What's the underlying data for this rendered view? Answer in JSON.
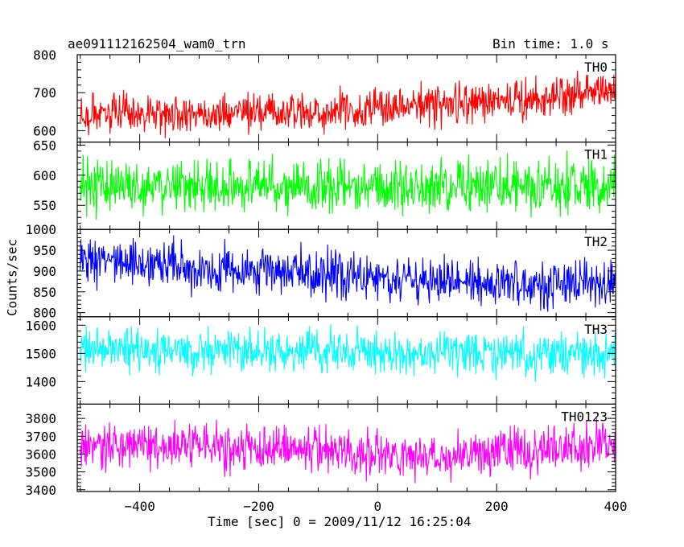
{
  "header": {
    "title": "ae091112162504_wam0_trn",
    "bin_time": "Bin time: 1.0 s"
  },
  "axes": {
    "xlabel": "Time [sec] 0 = 2009/11/12 16:25:04",
    "ylabel": "Counts/sec"
  },
  "chart_data": {
    "type": "line",
    "title": "ae091112162504_wam0_trn",
    "xlabel": "Time [sec] 0 = 2009/11/12 16:25:04",
    "ylabel": "Counts/sec",
    "xlim": [
      -505,
      400
    ],
    "x_ticks": [
      -400,
      -200,
      0,
      200,
      400
    ],
    "x_range_data": [
      -500,
      400
    ],
    "bin_time_s": 1.0,
    "grid": false,
    "panels": [
      {
        "name": "TH0",
        "color": "#ff0000",
        "ylim": [
          570,
          800
        ],
        "yticks": [
          600,
          700,
          800
        ],
        "trend": [
          [
            -500,
            645
          ],
          [
            -300,
            645
          ],
          [
            -100,
            650
          ],
          [
            100,
            668
          ],
          [
            300,
            690
          ],
          [
            400,
            712
          ]
        ],
        "noise_amplitude": 38
      },
      {
        "name": "TH1",
        "color": "#00ff00",
        "ylim": [
          510,
          655
        ],
        "yticks": [
          550,
          600,
          650
        ],
        "trend": [
          [
            -500,
            582
          ],
          [
            400,
            582
          ]
        ],
        "noise_amplitude": 32
      },
      {
        "name": "TH2",
        "color": "#0000ff",
        "ylim": [
          790,
          1000
        ],
        "yticks": [
          800,
          850,
          900,
          950,
          1000
        ],
        "trend": [
          [
            -500,
            925
          ],
          [
            -300,
            905
          ],
          [
            -100,
            893
          ],
          [
            50,
            878
          ],
          [
            200,
            868
          ],
          [
            400,
            870
          ]
        ],
        "noise_amplitude": 40
      },
      {
        "name": "TH3",
        "color": "#00ffff",
        "ylim": [
          1320,
          1630
        ],
        "yticks": [
          1400,
          1500,
          1600
        ],
        "trend": [
          [
            -500,
            1510
          ],
          [
            400,
            1495
          ]
        ],
        "noise_amplitude": 58
      },
      {
        "name": "TH0123",
        "color": "#ff00ff",
        "ylim": [
          3390,
          3880
        ],
        "yticks": [
          3400,
          3500,
          3600,
          3700,
          3800
        ],
        "trend": [
          [
            -500,
            3650
          ],
          [
            -200,
            3635
          ],
          [
            0,
            3600
          ],
          [
            100,
            3590
          ],
          [
            250,
            3615
          ],
          [
            400,
            3660
          ]
        ],
        "noise_amplitude": 95
      }
    ]
  }
}
